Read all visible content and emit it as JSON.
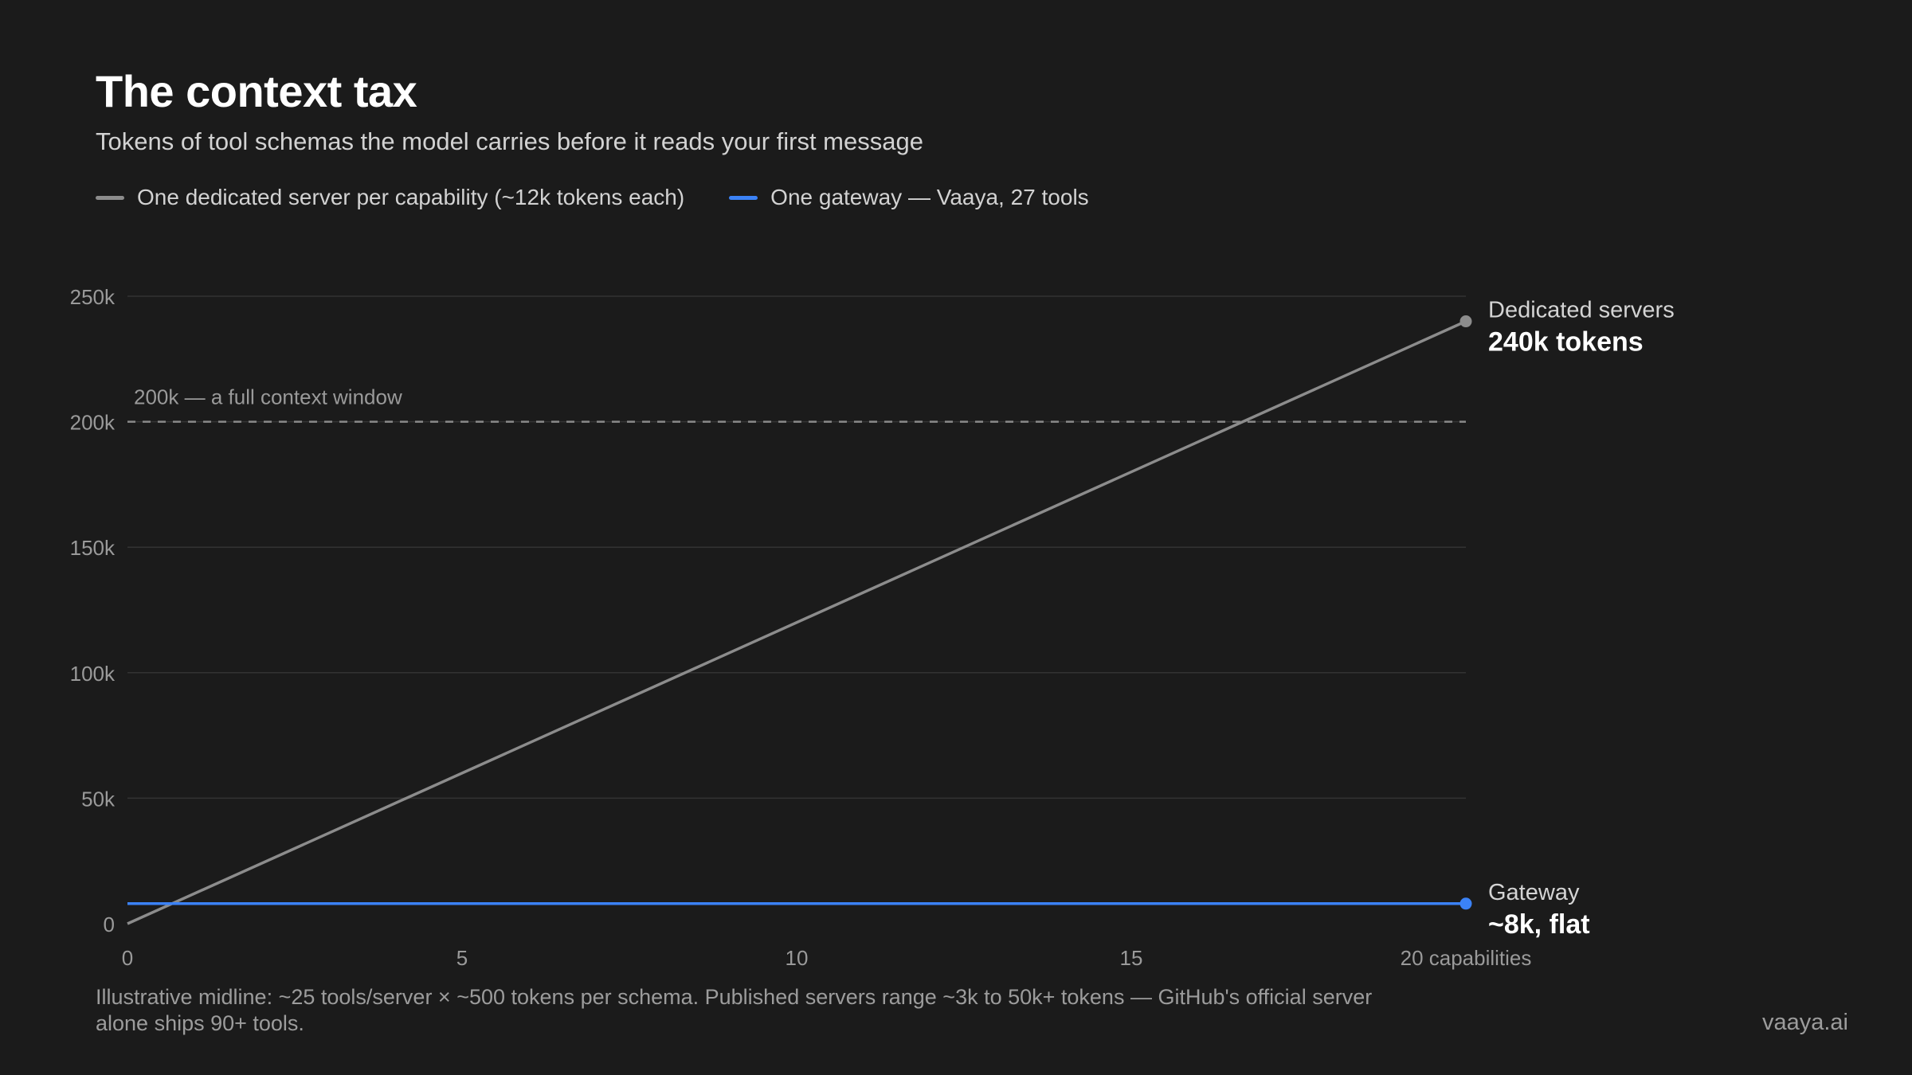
{
  "title": "The context tax",
  "subtitle": "Tokens of tool schemas the model carries before it reads your first message",
  "legend": [
    {
      "label": "One dedicated server per capability (~12k tokens each)",
      "color": "#8c8c8c"
    },
    {
      "label": "One gateway — Vaaya, 27 tools",
      "color": "#3b82f6"
    }
  ],
  "footnote": "Illustrative midline: ~25 tools/server × ~500 tokens per schema. Published servers range ~3k to 50k+ tokens — GitHub's official server alone ships 90+ tools.",
  "brand": "vaaya.ai",
  "chart_data": {
    "type": "line",
    "title": "The context tax",
    "xlabel": "capabilities",
    "ylabel": "",
    "xlim": [
      0,
      20
    ],
    "ylim": [
      0,
      250000
    ],
    "x_ticks": [
      0,
      5,
      10,
      15,
      20
    ],
    "x_tick_labels": [
      "0",
      "5",
      "10",
      "15",
      "20 capabilities"
    ],
    "y_ticks": [
      0,
      50000,
      100000,
      150000,
      200000,
      250000
    ],
    "y_tick_labels": [
      "0",
      "50k",
      "100k",
      "150k",
      "200k",
      "250k"
    ],
    "grid": true,
    "legend_position": "top-left",
    "series": [
      {
        "name": "One dedicated server per capability (~12k tokens each)",
        "color": "#8c8c8c",
        "x": [
          0,
          20
        ],
        "values": [
          0,
          240000
        ],
        "end_label": "Dedicated servers",
        "end_value_label": "240k tokens"
      },
      {
        "name": "One gateway — Vaaya, 27 tools",
        "color": "#3b82f6",
        "x": [
          0,
          20
        ],
        "values": [
          8000,
          8000
        ],
        "end_label": "Gateway",
        "end_value_label": "~8k, flat"
      }
    ],
    "reference_lines": [
      {
        "y": 200000,
        "label": "200k — a full context window",
        "style": "dashed",
        "color": "#8a8a8a"
      }
    ]
  }
}
